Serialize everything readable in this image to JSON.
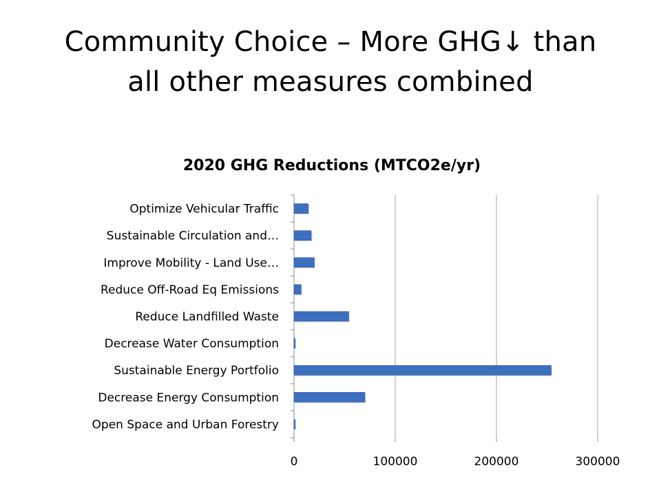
{
  "slide": {
    "title_line1": "Community Choice – More GHG↓ than",
    "title_line2": "all other measures combined"
  },
  "colors": {
    "bar": "#3d6fbf",
    "bar_edge": "#2c5496",
    "grid": "#a6a6a6",
    "axis": "#8c8c8c",
    "text": "#000000"
  },
  "chart_data": {
    "type": "bar",
    "orientation": "horizontal",
    "title": "2020 GHG Reductions (MTCO2e/yr)",
    "xlabel": "",
    "ylabel": "",
    "xlim": [
      0,
      300000
    ],
    "xticks": [
      "0",
      "100000",
      "200000",
      "300000"
    ],
    "grid": true,
    "legend": "none",
    "categories": [
      "Optimize Vehicular Traffic",
      "Sustainable Circulation and…",
      "Improve Mobility - Land Use…",
      "Reduce Off-Road Eq Emissions",
      "Reduce Landfilled Waste",
      "Decrease Water Consumption",
      "Sustainable Energy Portfolio",
      "Decrease Energy Consumption",
      "Open Space and Urban Forestry"
    ],
    "values": [
      14000,
      17000,
      20000,
      7000,
      54000,
      1000,
      254000,
      70000,
      1000
    ]
  }
}
